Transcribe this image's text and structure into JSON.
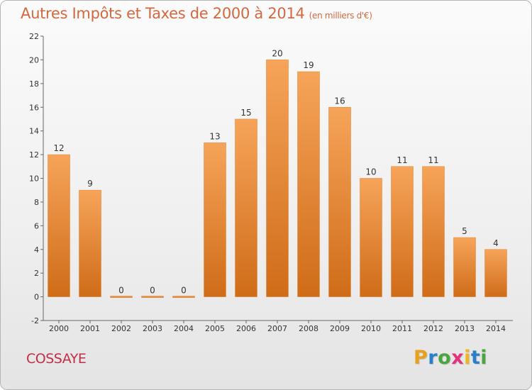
{
  "chart_data": {
    "type": "bar",
    "title": "Autres Impôts et Taxes de 2000 à 2014",
    "subtitle": "(en milliers d'€)",
    "categories": [
      "2000",
      "2001",
      "2002",
      "2003",
      "2004",
      "2005",
      "2006",
      "2007",
      "2008",
      "2009",
      "2010",
      "2011",
      "2012",
      "2013",
      "2014"
    ],
    "values": [
      12,
      9,
      0,
      0,
      0,
      13,
      15,
      20,
      19,
      16,
      10,
      11,
      11,
      5,
      4
    ],
    "ylim": [
      -2,
      22
    ],
    "yticks": [
      "-2",
      "0",
      "2",
      "4",
      "6",
      "8",
      "10",
      "12",
      "14",
      "16",
      "18",
      "20",
      "22"
    ],
    "grid": false,
    "legend": "none",
    "colors": {
      "bar_top": "#f6a45a",
      "bar_bottom": "#cf6c18",
      "title": "#d2683f"
    }
  },
  "footer": {
    "commune": "COSSAYE",
    "brand_letters": [
      "P",
      "r",
      "o",
      "x",
      "i",
      "t",
      "i"
    ],
    "brand_colors": [
      "#e8a01f",
      "#2a7fc9",
      "#4aa53c",
      "#e2317d",
      "#f0b41c",
      "#2a7fc9",
      "#4aa53c"
    ]
  }
}
